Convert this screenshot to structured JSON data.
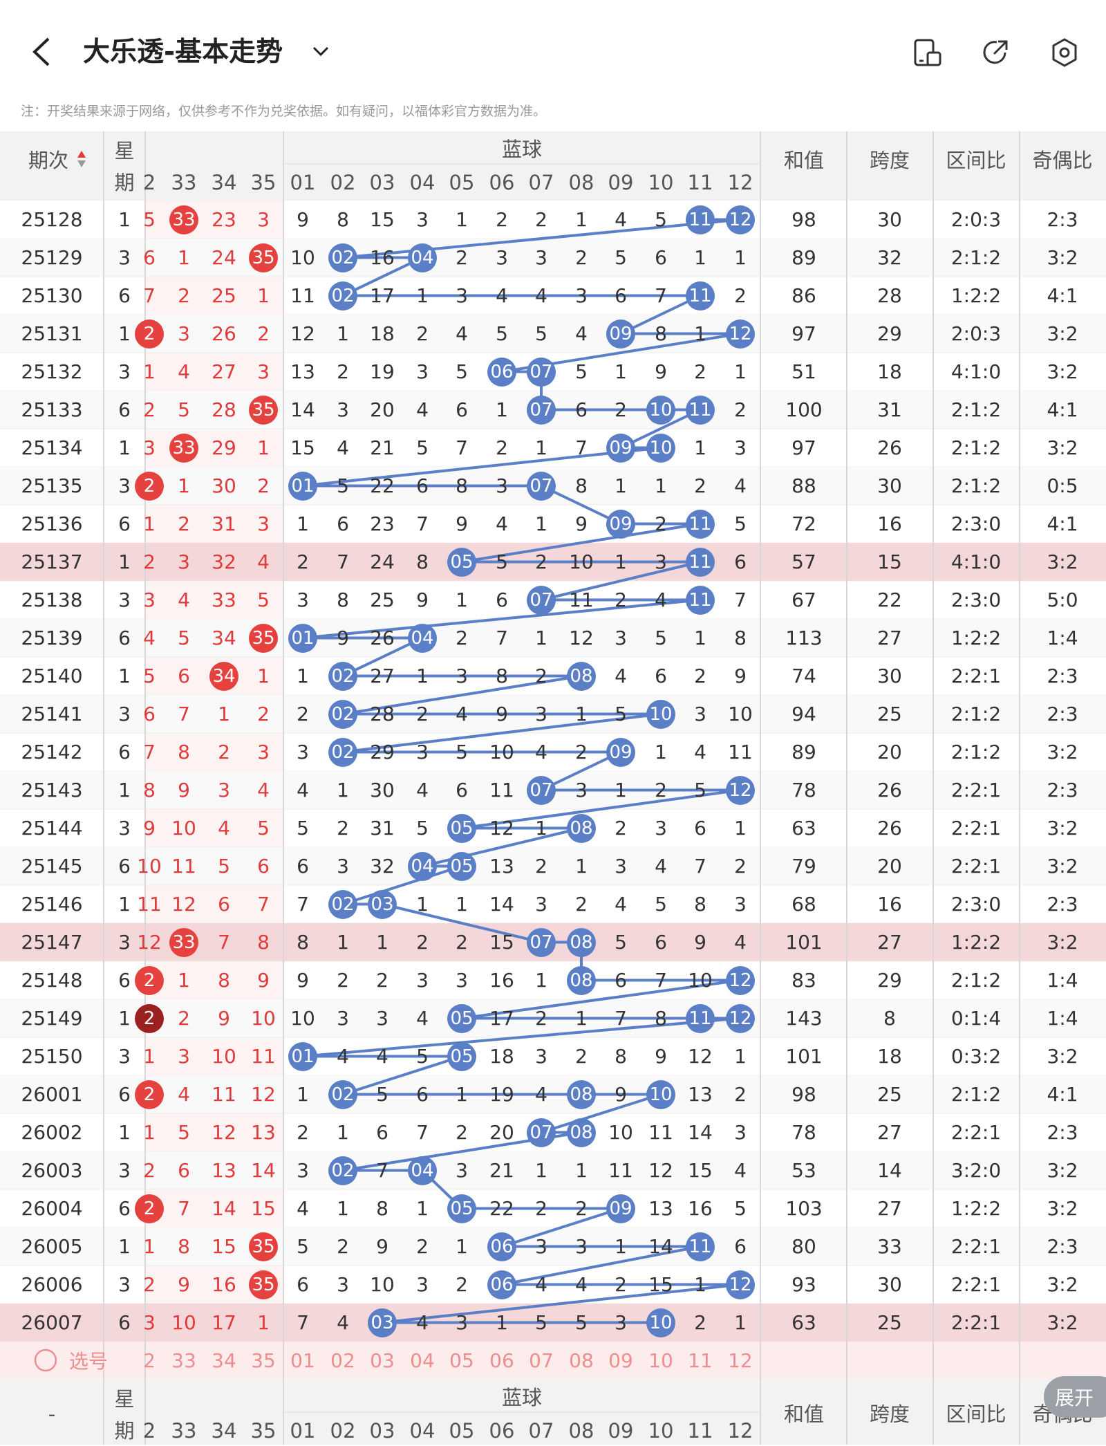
{
  "header": {
    "title": "大乐透-基本走势",
    "icons": [
      "back-icon",
      "chevron-down-icon",
      "device-split-icon",
      "share-icon",
      "settings-hexagon-icon"
    ]
  },
  "note": "注：开奖结果来源于网络，仅供参考不作为兑奖依据。如有疑问，以福体彩官方数据为准。",
  "table": {
    "period_header": "期次",
    "week_header": "星期",
    "blue_header": "蓝球",
    "red_cols": [
      "2",
      "33",
      "34",
      "35"
    ],
    "blue_cols": [
      "01",
      "02",
      "03",
      "04",
      "05",
      "06",
      "07",
      "08",
      "09",
      "10",
      "11",
      "12"
    ],
    "stat_headers": [
      "和值",
      "跨度",
      "区间比",
      "奇偶比"
    ],
    "rows": [
      {
        "p": "25128",
        "w": "1",
        "r": [
          "5",
          "33",
          "23",
          "3"
        ],
        "rb": [
          1
        ],
        "b": [
          "9",
          "8",
          "15",
          "3",
          "1",
          "2",
          "2",
          "1",
          "4",
          "5",
          "11",
          "12"
        ],
        "s": [
          "98",
          "30",
          "2:0:3",
          "2:3"
        ]
      },
      {
        "p": "25129",
        "w": "3",
        "r": [
          "6",
          "1",
          "24",
          "35"
        ],
        "rb": [
          3
        ],
        "b": [
          "10",
          "02",
          "16",
          "04",
          "2",
          "3",
          "3",
          "2",
          "5",
          "6",
          "1",
          "1"
        ],
        "s": [
          "89",
          "32",
          "2:1:2",
          "3:2"
        ]
      },
      {
        "p": "25130",
        "w": "6",
        "r": [
          "7",
          "2",
          "25",
          "1"
        ],
        "rb": [],
        "b": [
          "11",
          "02",
          "17",
          "1",
          "3",
          "4",
          "4",
          "3",
          "6",
          "7",
          "11",
          "2"
        ],
        "s": [
          "86",
          "28",
          "1:2:2",
          "4:1"
        ]
      },
      {
        "p": "25131",
        "w": "1",
        "r": [
          "2",
          "3",
          "26",
          "2"
        ],
        "rb": [
          0
        ],
        "b": [
          "12",
          "1",
          "18",
          "2",
          "4",
          "5",
          "5",
          "4",
          "09",
          "8",
          "1",
          "12"
        ],
        "s": [
          "97",
          "29",
          "2:0:3",
          "3:2"
        ]
      },
      {
        "p": "25132",
        "w": "3",
        "r": [
          "1",
          "4",
          "27",
          "3"
        ],
        "rb": [],
        "b": [
          "13",
          "2",
          "19",
          "3",
          "5",
          "06",
          "07",
          "5",
          "1",
          "9",
          "2",
          "1"
        ],
        "s": [
          "51",
          "18",
          "4:1:0",
          "3:2"
        ]
      },
      {
        "p": "25133",
        "w": "6",
        "r": [
          "2",
          "5",
          "28",
          "35"
        ],
        "rb": [
          3
        ],
        "b": [
          "14",
          "3",
          "20",
          "4",
          "6",
          "1",
          "07",
          "6",
          "2",
          "10",
          "11",
          "2"
        ],
        "s": [
          "100",
          "31",
          "2:1:2",
          "4:1"
        ]
      },
      {
        "p": "25134",
        "w": "1",
        "r": [
          "3",
          "33",
          "29",
          "1"
        ],
        "rb": [
          1
        ],
        "b": [
          "15",
          "4",
          "21",
          "5",
          "7",
          "2",
          "1",
          "7",
          "09",
          "10",
          "1",
          "3"
        ],
        "s": [
          "97",
          "26",
          "2:1:2",
          "3:2"
        ]
      },
      {
        "p": "25135",
        "w": "3",
        "r": [
          "2",
          "1",
          "30",
          "2"
        ],
        "rb": [
          0
        ],
        "b": [
          "01",
          "5",
          "22",
          "6",
          "8",
          "3",
          "07",
          "8",
          "1",
          "1",
          "2",
          "4"
        ],
        "s": [
          "88",
          "30",
          "2:1:2",
          "0:5"
        ]
      },
      {
        "p": "25136",
        "w": "6",
        "r": [
          "1",
          "2",
          "31",
          "3"
        ],
        "rb": [],
        "b": [
          "1",
          "6",
          "23",
          "7",
          "9",
          "4",
          "1",
          "9",
          "09",
          "2",
          "11",
          "5"
        ],
        "s": [
          "72",
          "16",
          "2:3:0",
          "4:1"
        ]
      },
      {
        "p": "25137",
        "w": "1",
        "r": [
          "2",
          "3",
          "32",
          "4"
        ],
        "rb": [],
        "b": [
          "2",
          "7",
          "24",
          "8",
          "05",
          "5",
          "2",
          "10",
          "1",
          "3",
          "11",
          "6"
        ],
        "s": [
          "57",
          "15",
          "4:1:0",
          "3:2"
        ],
        "hl": true
      },
      {
        "p": "25138",
        "w": "3",
        "r": [
          "3",
          "4",
          "33",
          "5"
        ],
        "rb": [],
        "b": [
          "3",
          "8",
          "25",
          "9",
          "1",
          "6",
          "07",
          "11",
          "2",
          "4",
          "11",
          "7"
        ],
        "s": [
          "67",
          "22",
          "2:3:0",
          "5:0"
        ]
      },
      {
        "p": "25139",
        "w": "6",
        "r": [
          "4",
          "5",
          "34",
          "35"
        ],
        "rb": [
          3
        ],
        "b": [
          "01",
          "9",
          "26",
          "04",
          "2",
          "7",
          "1",
          "12",
          "3",
          "5",
          "1",
          "8"
        ],
        "s": [
          "113",
          "27",
          "1:2:2",
          "1:4"
        ]
      },
      {
        "p": "25140",
        "w": "1",
        "r": [
          "5",
          "6",
          "34",
          "1"
        ],
        "rb": [
          2
        ],
        "b": [
          "1",
          "02",
          "27",
          "1",
          "3",
          "8",
          "2",
          "08",
          "4",
          "6",
          "2",
          "9"
        ],
        "s": [
          "74",
          "30",
          "2:2:1",
          "2:3"
        ]
      },
      {
        "p": "25141",
        "w": "3",
        "r": [
          "6",
          "7",
          "1",
          "2"
        ],
        "rb": [],
        "b": [
          "2",
          "02",
          "28",
          "2",
          "4",
          "9",
          "3",
          "1",
          "5",
          "10",
          "3",
          "10"
        ],
        "s": [
          "94",
          "25",
          "2:1:2",
          "2:3"
        ]
      },
      {
        "p": "25142",
        "w": "6",
        "r": [
          "7",
          "8",
          "2",
          "3"
        ],
        "rb": [],
        "b": [
          "3",
          "02",
          "29",
          "3",
          "5",
          "10",
          "4",
          "2",
          "09",
          "1",
          "4",
          "11"
        ],
        "s": [
          "89",
          "20",
          "2:1:2",
          "3:2"
        ]
      },
      {
        "p": "25143",
        "w": "1",
        "r": [
          "8",
          "9",
          "3",
          "4"
        ],
        "rb": [],
        "b": [
          "4",
          "1",
          "30",
          "4",
          "6",
          "11",
          "07",
          "3",
          "1",
          "2",
          "5",
          "12"
        ],
        "s": [
          "78",
          "26",
          "2:2:1",
          "2:3"
        ]
      },
      {
        "p": "25144",
        "w": "3",
        "r": [
          "9",
          "10",
          "4",
          "5"
        ],
        "rb": [],
        "b": [
          "5",
          "2",
          "31",
          "5",
          "05",
          "12",
          "1",
          "08",
          "2",
          "3",
          "6",
          "1"
        ],
        "s": [
          "63",
          "26",
          "2:2:1",
          "3:2"
        ]
      },
      {
        "p": "25145",
        "w": "6",
        "r": [
          "10",
          "11",
          "5",
          "6"
        ],
        "rb": [],
        "b": [
          "6",
          "3",
          "32",
          "04",
          "05",
          "13",
          "2",
          "1",
          "3",
          "4",
          "7",
          "2"
        ],
        "s": [
          "79",
          "20",
          "2:2:1",
          "3:2"
        ]
      },
      {
        "p": "25146",
        "w": "1",
        "r": [
          "11",
          "12",
          "6",
          "7"
        ],
        "rb": [],
        "b": [
          "7",
          "02",
          "03",
          "1",
          "1",
          "14",
          "3",
          "2",
          "4",
          "5",
          "8",
          "3"
        ],
        "s": [
          "68",
          "16",
          "2:3:0",
          "2:3"
        ]
      },
      {
        "p": "25147",
        "w": "3",
        "r": [
          "12",
          "33",
          "7",
          "8"
        ],
        "rb": [
          1
        ],
        "b": [
          "8",
          "1",
          "1",
          "2",
          "2",
          "15",
          "07",
          "08",
          "5",
          "6",
          "9",
          "4"
        ],
        "s": [
          "101",
          "27",
          "1:2:2",
          "3:2"
        ],
        "hl": true
      },
      {
        "p": "25148",
        "w": "6",
        "r": [
          "2",
          "1",
          "8",
          "9"
        ],
        "rb": [
          0
        ],
        "b": [
          "9",
          "2",
          "2",
          "3",
          "3",
          "16",
          "1",
          "08",
          "6",
          "7",
          "10",
          "12"
        ],
        "s": [
          "83",
          "29",
          "2:1:2",
          "1:4"
        ]
      },
      {
        "p": "25149",
        "w": "1",
        "r": [
          "2",
          "2",
          "9",
          "10"
        ],
        "rb": [
          0
        ],
        "rbd": [
          0
        ],
        "b": [
          "10",
          "3",
          "3",
          "4",
          "05",
          "17",
          "2",
          "1",
          "7",
          "8",
          "11",
          "12"
        ],
        "s": [
          "143",
          "8",
          "0:1:4",
          "1:4"
        ]
      },
      {
        "p": "25150",
        "w": "3",
        "r": [
          "1",
          "3",
          "10",
          "11"
        ],
        "rb": [],
        "b": [
          "01",
          "4",
          "4",
          "5",
          "05",
          "18",
          "3",
          "2",
          "8",
          "9",
          "12",
          "1"
        ],
        "s": [
          "101",
          "18",
          "0:3:2",
          "3:2"
        ]
      },
      {
        "p": "26001",
        "w": "6",
        "r": [
          "2",
          "4",
          "11",
          "12"
        ],
        "rb": [
          0
        ],
        "b": [
          "1",
          "02",
          "5",
          "6",
          "1",
          "19",
          "4",
          "08",
          "9",
          "10",
          "13",
          "2"
        ],
        "s": [
          "98",
          "25",
          "2:1:2",
          "4:1"
        ]
      },
      {
        "p": "26002",
        "w": "1",
        "r": [
          "1",
          "5",
          "12",
          "13"
        ],
        "rb": [],
        "b": [
          "2",
          "1",
          "6",
          "7",
          "2",
          "20",
          "07",
          "08",
          "10",
          "11",
          "14",
          "3"
        ],
        "s": [
          "78",
          "27",
          "2:2:1",
          "2:3"
        ]
      },
      {
        "p": "26003",
        "w": "3",
        "r": [
          "2",
          "6",
          "13",
          "14"
        ],
        "rb": [],
        "b": [
          "3",
          "02",
          "7",
          "04",
          "3",
          "21",
          "1",
          "1",
          "11",
          "12",
          "15",
          "4"
        ],
        "s": [
          "53",
          "14",
          "3:2:0",
          "3:2"
        ]
      },
      {
        "p": "26004",
        "w": "6",
        "r": [
          "2",
          "7",
          "14",
          "15"
        ],
        "rb": [
          0
        ],
        "b": [
          "4",
          "1",
          "8",
          "1",
          "05",
          "22",
          "2",
          "2",
          "09",
          "13",
          "16",
          "5"
        ],
        "s": [
          "103",
          "27",
          "1:2:2",
          "3:2"
        ]
      },
      {
        "p": "26005",
        "w": "1",
        "r": [
          "1",
          "8",
          "15",
          "35"
        ],
        "rb": [
          3
        ],
        "b": [
          "5",
          "2",
          "9",
          "2",
          "1",
          "06",
          "3",
          "3",
          "1",
          "14",
          "11",
          "6"
        ],
        "s": [
          "80",
          "33",
          "2:2:1",
          "2:3"
        ]
      },
      {
        "p": "26006",
        "w": "3",
        "r": [
          "2",
          "9",
          "16",
          "35"
        ],
        "rb": [
          3
        ],
        "b": [
          "6",
          "3",
          "10",
          "3",
          "2",
          "06",
          "4",
          "4",
          "2",
          "15",
          "1",
          "12"
        ],
        "s": [
          "93",
          "30",
          "2:2:1",
          "3:2"
        ]
      },
      {
        "p": "26007",
        "w": "6",
        "r": [
          "3",
          "10",
          "17",
          "1"
        ],
        "rb": [],
        "b": [
          "7",
          "4",
          "03",
          "4",
          "3",
          "1",
          "5",
          "5",
          "3",
          "10",
          "2",
          "1"
        ],
        "s": [
          "63",
          "25",
          "2:2:1",
          "3:2"
        ],
        "hl": true
      }
    ],
    "select_label": "选号",
    "footer_period": "-",
    "expand_label": "展开"
  },
  "colors": {
    "blue_ball": "#5b7fc6",
    "red_ball": "#e5423f",
    "highlight_row": "#f4d7d9",
    "line": "#5b7fc6"
  }
}
